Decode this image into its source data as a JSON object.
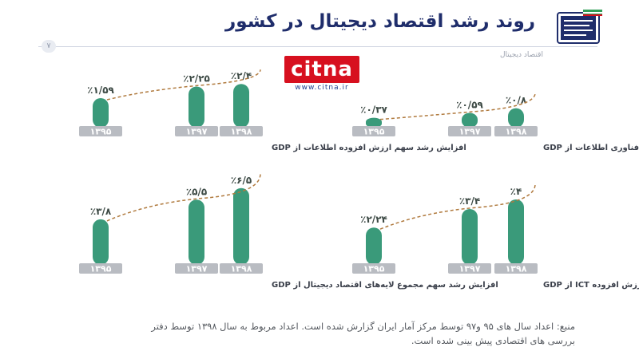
{
  "header": {
    "title": "روند رشد اقتصاد دیجیتال در کشور",
    "subtitle": "اقتصاد دیجیتال",
    "page_number": "۷"
  },
  "watermark": {
    "brand": "citna",
    "url": "www.citna.ir"
  },
  "colors": {
    "bar": "#3a9a7a",
    "bar_top": "#45ad88",
    "year_pill": "#b9bcc2",
    "curve": "#b07a3e",
    "title": "#1f2d6b"
  },
  "chart_data": [
    {
      "type": "bar",
      "title": "افزایش رشد سهم ارزش افزوده اطلاعات از GDP",
      "categories": [
        "۱۳۹۵",
        "۱۳۹۷",
        "۱۳۹۸"
      ],
      "series": [
        {
          "values": [
            1.59,
            2.25,
            2.4
          ]
        }
      ],
      "labels": [
        "٪۱/۵۹",
        "٪۲/۲۵",
        "٪۲/۴"
      ]
    },
    {
      "type": "bar",
      "title": "افزایش رشد سهم ارزش افزوده فناوری اطلاعات از GDP",
      "categories": [
        "۱۳۹۵",
        "۱۳۹۷",
        "۱۳۹۸"
      ],
      "series": [
        {
          "values": [
            0.37,
            0.59,
            0.8
          ]
        }
      ],
      "labels": [
        "٪۰/۳۷",
        "٪۰/۵۹",
        "٪۰/۸"
      ]
    },
    {
      "type": "bar",
      "title": "افزایش رشد سهم مجموع لایه‌های اقتصاد دیجیتال از GDP",
      "categories": [
        "۱۳۹۵",
        "۱۳۹۷",
        "۱۳۹۸"
      ],
      "series": [
        {
          "values": [
            3.8,
            5.5,
            6.5
          ]
        }
      ],
      "labels": [
        "٪۳/۸",
        "٪۵/۵",
        "٪۶/۵"
      ]
    },
    {
      "type": "bar",
      "title": "افزایش رشد سهم ارزش افزوده ICT از GDP",
      "categories": [
        "۱۳۹۵",
        "۱۳۹۷",
        "۱۳۹۸"
      ],
      "series": [
        {
          "values": [
            2.24,
            3.4,
            4
          ]
        }
      ],
      "labels": [
        "٪۲/۲۴",
        "٪۳/۴",
        "٪۴"
      ]
    }
  ],
  "footer": {
    "source_line1": "منبع: اعداد سال های ۹۵ و۹۷ توسط مرکز آمار ایران گزارش شده است. اعداد مربوط به  سال ۱۳۹۸ توسط دفتر",
    "source_line2": "بررسی های اقتصادی پیش بینی شده است."
  }
}
